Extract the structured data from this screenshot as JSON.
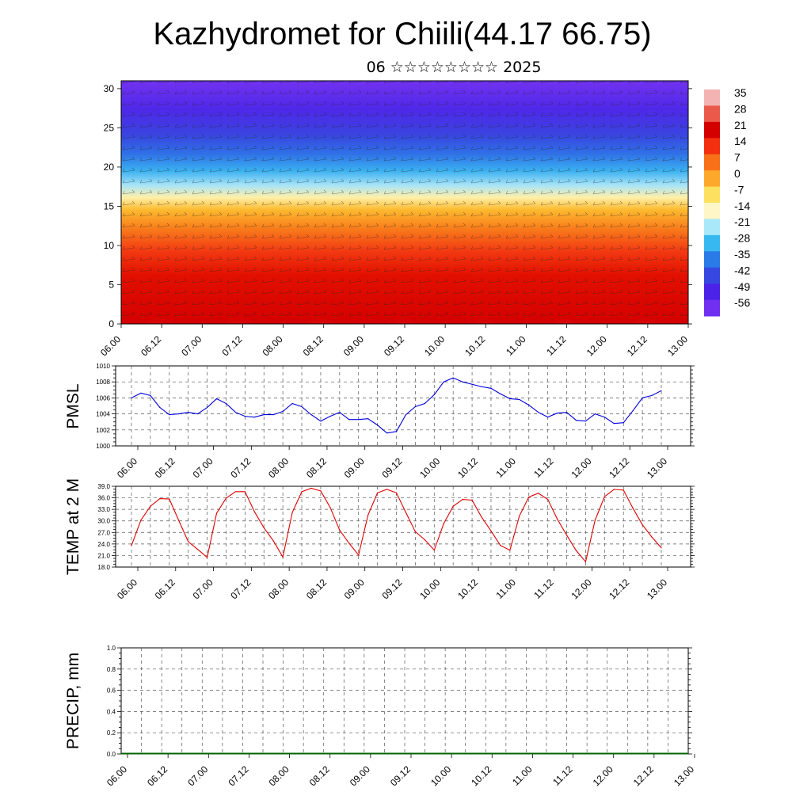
{
  "title": "Kazhydromet for Chiili(44.17 66.75)",
  "subtitle": "06 ☆☆☆☆☆☆☆☆ 2025",
  "x_tick_labels": [
    "06.00",
    "06.12",
    "07.00",
    "07.12",
    "08.00",
    "08.12",
    "09.00",
    "09.12",
    "10.00",
    "10.12",
    "11.00",
    "11.12",
    "12.00",
    "12.12",
    "13.00"
  ],
  "chart_data": [
    {
      "type": "heatmap",
      "title": "",
      "ylabel": "",
      "ylim": [
        0,
        31
      ],
      "y_ticks": [
        0,
        5,
        10,
        15,
        20,
        25,
        30
      ],
      "colorbar": {
        "labels": [
          "35",
          "28",
          "21",
          "14",
          "7",
          "0",
          "-7",
          "-14",
          "-21",
          "-28",
          "-35",
          "-42",
          "-49",
          "-56"
        ],
        "colors": [
          "#f4b3b3",
          "#ea5a4a",
          "#d40000",
          "#f23010",
          "#f87018",
          "#fca82a",
          "#fde060",
          "#fff6c8",
          "#a8e8f8",
          "#38b8f0",
          "#2a7ae8",
          "#3648e0",
          "#4a22e8",
          "#7030f0"
        ]
      }
    },
    {
      "type": "line",
      "ylabel": "PMSL",
      "ylim": [
        1000,
        1010
      ],
      "y_ticks": [
        "1000",
        "1002",
        "1004",
        "1006",
        "1008",
        "1010"
      ],
      "color": "#0000dd",
      "x": [
        0,
        3,
        6,
        9,
        12,
        15,
        18,
        21,
        24,
        27,
        30,
        33,
        36,
        39,
        42,
        45,
        48,
        51,
        54,
        57,
        60,
        63,
        66,
        69,
        72,
        75,
        78,
        81,
        84,
        87,
        90,
        93,
        96,
        99,
        102,
        105,
        108,
        111,
        114,
        117,
        120,
        123,
        126,
        129,
        132,
        135,
        138,
        141,
        144,
        147,
        150,
        153,
        156,
        159,
        162,
        165,
        168
      ],
      "values": [
        1006.0,
        1006.6,
        1006.3,
        1004.8,
        1003.9,
        1004.0,
        1004.2,
        1004.0,
        1004.8,
        1005.9,
        1005.3,
        1004.2,
        1003.7,
        1003.6,
        1003.9,
        1003.9,
        1004.3,
        1005.3,
        1004.9,
        1003.9,
        1003.1,
        1003.7,
        1004.2,
        1003.3,
        1003.3,
        1003.4,
        1002.6,
        1001.6,
        1001.8,
        1003.9,
        1004.9,
        1005.3,
        1006.4,
        1008.0,
        1008.5,
        1008.0,
        1007.7,
        1007.4,
        1007.2,
        1006.5,
        1005.9,
        1005.8,
        1005.1,
        1004.2,
        1003.6,
        1004.1,
        1004.2,
        1003.2,
        1003.1,
        1004.0,
        1003.6,
        1002.8,
        1002.9,
        1004.4,
        1006.0,
        1006.3,
        1006.9
      ]
    },
    {
      "type": "line",
      "ylabel": "TEMP at 2 M",
      "ylim": [
        18,
        39
      ],
      "y_ticks": [
        "18.0",
        "21.0",
        "24.0",
        "27.0",
        "30.0",
        "33.0",
        "36.0",
        "39.0"
      ],
      "color": "#dd0000",
      "x": [
        0,
        3,
        6,
        9,
        12,
        15,
        18,
        21,
        24,
        27,
        30,
        33,
        36,
        39,
        42,
        45,
        48,
        51,
        54,
        57,
        60,
        63,
        66,
        69,
        72,
        75,
        78,
        81,
        84,
        87,
        90,
        93,
        96,
        99,
        102,
        105,
        108,
        111,
        114,
        117,
        120,
        123,
        126,
        129,
        132,
        135,
        138,
        141,
        144,
        147,
        150,
        153,
        156,
        159,
        162,
        165,
        168
      ],
      "values": [
        23.6,
        30.2,
        33.8,
        35.8,
        35.7,
        30.1,
        24.6,
        22.6,
        20.5,
        32.0,
        35.9,
        37.6,
        37.6,
        32.4,
        28.2,
        24.8,
        20.6,
        32.2,
        37.6,
        38.5,
        37.8,
        33.5,
        27.6,
        24.2,
        21.1,
        31.5,
        37.3,
        38.2,
        37.3,
        32.2,
        27.2,
        25.1,
        22.4,
        29.3,
        33.8,
        35.6,
        35.4,
        31.0,
        27.4,
        23.6,
        22.4,
        31.3,
        36.2,
        37.2,
        35.6,
        30.5,
        26.3,
        22.3,
        19.4,
        30.2,
        36.3,
        38.2,
        38.0,
        33.3,
        29.0,
        25.8,
        23.0
      ]
    },
    {
      "type": "bar",
      "ylabel": "PRECIP, mm",
      "ylim": [
        0,
        1
      ],
      "y_ticks": [
        "0.0",
        "0.2",
        "0.4",
        "0.6",
        "0.8",
        "1.0"
      ],
      "color": "#006400",
      "values": []
    }
  ]
}
